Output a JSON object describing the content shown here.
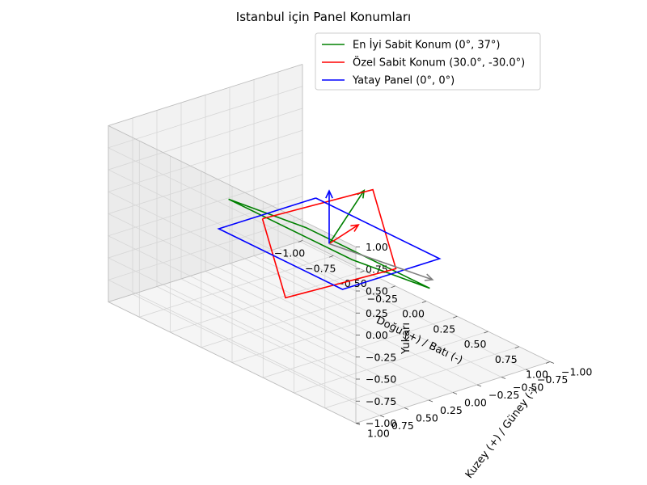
{
  "chart_data": {
    "type": "line3d",
    "title": "Istanbul için Panel Konumları",
    "xlabel": "Doğu (+) / Batı (-)",
    "ylabel": "Kuzey (+) / Güney (-)",
    "zlabel": "Yukarı",
    "xlim": [
      -1,
      1
    ],
    "ylim": [
      -1,
      1
    ],
    "zlim": [
      -1,
      1
    ],
    "ticks": [
      "−1.00",
      "−0.75",
      "−0.50",
      "−0.25",
      "0.00",
      "0.25",
      "0.50",
      "0.75",
      "1.00"
    ],
    "tick_values": [
      -1,
      -0.75,
      -0.5,
      -0.25,
      0,
      0.25,
      0.5,
      0.75,
      1
    ],
    "grid": true,
    "legend_position": "top-right",
    "sun_arrow_color": "#808080",
    "series": [
      {
        "name": "En İyi Sabit Konum (0°, 37°)",
        "color": "#008000",
        "tilt_deg": 37,
        "azimuth_deg": 0,
        "outline": [
          [
            -0.5,
            -0.399,
            -0.301
          ],
          [
            0.5,
            -0.399,
            -0.301
          ],
          [
            0.5,
            0.399,
            0.301
          ],
          [
            -0.5,
            0.399,
            0.301
          ],
          [
            -0.5,
            -0.399,
            -0.301
          ]
        ],
        "normal": [
          0,
          -0.36,
          0.479
        ]
      },
      {
        "name": "Özel Sabit Konum (30.0°, -30.0°)",
        "color": "#ff0000",
        "tilt_deg": 30.0,
        "azimuth_deg": -30.0,
        "outline": [
          [
            -0.683,
            -0.183,
            -0.25
          ],
          [
            0.183,
            0.683,
            -0.25
          ],
          [
            0.683,
            0.183,
            0.25
          ],
          [
            -0.183,
            -0.683,
            0.25
          ],
          [
            -0.683,
            -0.183,
            -0.25
          ]
        ],
        "normal": [
          0.433,
          0.25,
          0.6
        ]
      },
      {
        "name": "Yatay Panel (0°, 0°)",
        "color": "#0000ff",
        "tilt_deg": 0,
        "azimuth_deg": 0,
        "outline": [
          [
            -0.5,
            -0.5,
            0
          ],
          [
            0.5,
            -0.5,
            0
          ],
          [
            0.5,
            0.5,
            0
          ],
          [
            -0.5,
            0.5,
            0
          ],
          [
            -0.5,
            -0.5,
            0
          ]
        ],
        "normal": [
          0,
          0,
          0.6
        ]
      }
    ],
    "sun_vector": [
      0.6,
      -0.3,
      -0.1
    ]
  }
}
